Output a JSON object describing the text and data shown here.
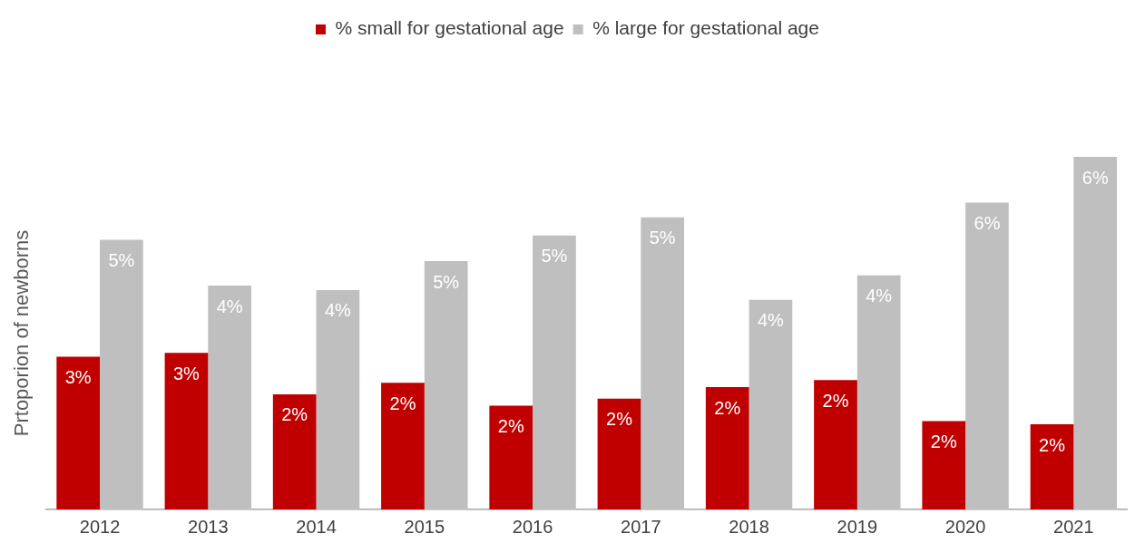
{
  "chart_data": {
    "type": "bar",
    "ylabel": "Prtoporion of newborns",
    "tick_labels": "x",
    "legend": "top",
    "grid": false,
    "categories": [
      "2012",
      "2013",
      "2014",
      "2015",
      "2016",
      "2017",
      "2018",
      "2019",
      "2020",
      "2021"
    ],
    "series": [
      {
        "name": "% small for gestational age",
        "color": "#c00000",
        "values": [
          2.8,
          2.87,
          2.11,
          2.32,
          1.9,
          2.03,
          2.24,
          2.37,
          1.62,
          1.56
        ],
        "value_labels": [
          "3%",
          "3%",
          "2%",
          "2%",
          "2%",
          "2%",
          "2%",
          "2%",
          "2%",
          "2%"
        ]
      },
      {
        "name": "% large for gestational age",
        "color": "#bfbfbf",
        "values": [
          4.94,
          4.1,
          4.02,
          4.55,
          5.02,
          5.35,
          3.84,
          4.29,
          5.62,
          6.46
        ],
        "value_labels": [
          "5%",
          "4%",
          "4%",
          "5%",
          "5%",
          "5%",
          "4%",
          "4%",
          "6%",
          "6%"
        ]
      }
    ]
  }
}
